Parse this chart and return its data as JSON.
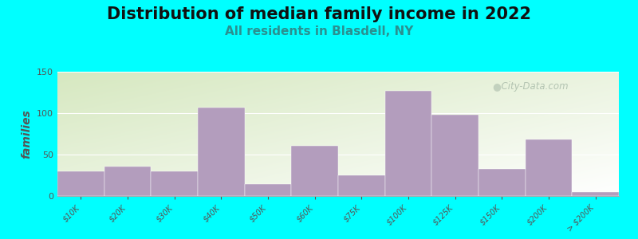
{
  "title": "Distribution of median family income in 2022",
  "subtitle": "All residents in Blasdell, NY",
  "ylabel": "families",
  "background_color": "#00FFFF",
  "plot_bg_top_left": "#d6e8c0",
  "plot_bg_bottom_right": "#f5f5f0",
  "bar_color": "#b39dbd",
  "categories": [
    "$10K",
    "$20K",
    "$30K",
    "$40K",
    "$50K",
    "$60K",
    "$75K",
    "$100K",
    "$125K",
    "$150K",
    "$200K",
    "> $200K"
  ],
  "values": [
    30,
    36,
    30,
    107,
    14,
    61,
    25,
    127,
    98,
    33,
    68,
    5
  ],
  "ylim": [
    0,
    150
  ],
  "yticks": [
    0,
    50,
    100,
    150
  ],
  "title_fontsize": 15,
  "subtitle_fontsize": 11,
  "ylabel_fontsize": 10,
  "tick_fontsize": 8,
  "watermark_text": "  City-Data.com",
  "watermark_color": "#aabcaa",
  "figsize": [
    8.0,
    3.0
  ],
  "dpi": 100
}
